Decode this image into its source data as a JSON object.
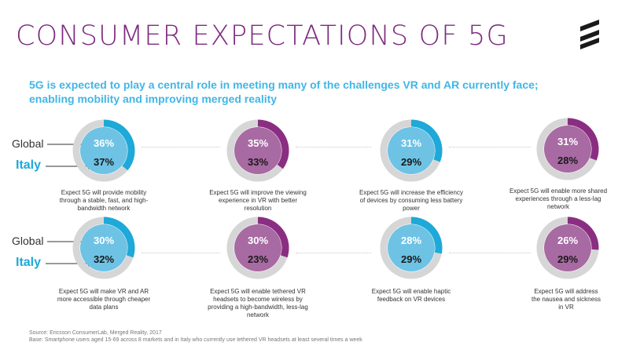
{
  "header": {
    "title": "CONSUMER EXPECTATIONS OF 5G",
    "logo_icon": "ericsson-logo-icon"
  },
  "subtitle": {
    "line1": "5G is expected to play a central role in meeting many of the challenges VR and AR currently face;",
    "line2": "enabling mobility and improving merged reality"
  },
  "legend": {
    "global_label": "Global",
    "italy_label": "Italy"
  },
  "colors": {
    "title": "#7d2a80",
    "subtitle": "#41b6e6",
    "blue_inner": "#6ec3e5",
    "blue_arc": "#1ea9d8",
    "purple_inner": "#a86aa2",
    "purple_arc": "#8a2e82",
    "track": "#d6d6d6"
  },
  "chart_data": {
    "type": "pie",
    "unit": "%",
    "series_names": [
      "Global",
      "Italy"
    ],
    "items": [
      {
        "color": "blue",
        "global": 36,
        "italy": 37,
        "global_label": "36%",
        "italy_label": "37%",
        "caption": [
          "Expect 5G will provide mobility",
          "through a stable, fast, and high-",
          "bandwidth network"
        ]
      },
      {
        "color": "purple",
        "global": 35,
        "italy": 33,
        "global_label": "35%",
        "italy_label": "33%",
        "caption": [
          "Expect 5G will improve the viewing",
          "experience in VR with better",
          "resolution"
        ]
      },
      {
        "color": "blue",
        "global": 31,
        "italy": 29,
        "global_label": "31%",
        "italy_label": "29%",
        "caption": [
          "Expect 5G will increase the efficiency",
          "of devices by consuming less battery",
          "power"
        ]
      },
      {
        "color": "purple",
        "global": 31,
        "italy": 28,
        "global_label": "31%",
        "italy_label": "28%",
        "caption": [
          "Expect 5G will enable more shared",
          "experiences through a less-lag",
          "network"
        ]
      },
      {
        "color": "blue",
        "global": 30,
        "italy": 32,
        "global_label": "30%",
        "italy_label": "32%",
        "caption": [
          "Expect 5G will make VR and AR",
          "more accessible through cheaper",
          "data plans"
        ]
      },
      {
        "color": "purple",
        "global": 30,
        "italy": 23,
        "global_label": "30%",
        "italy_label": "23%",
        "caption": [
          "Expect 5G will enable tethered VR",
          "headsets to become wireless by",
          "providing a high-bandwidth, less-lag",
          "network"
        ]
      },
      {
        "color": "blue",
        "global": 28,
        "italy": 29,
        "global_label": "28%",
        "italy_label": "29%",
        "caption": [
          "Expect 5G will enable haptic",
          "feedback on VR devices"
        ]
      },
      {
        "color": "purple",
        "global": 26,
        "italy": 29,
        "global_label": "26%",
        "italy_label": "29%",
        "caption": [
          "Expect 5G will address",
          "the nausea and sickness",
          "in VR"
        ]
      }
    ]
  },
  "footer": {
    "source": "Source: Ericsson ConsumerLab, Merged Reality, 2017",
    "base": "Base: Smartphone users aged 15-69 across 8 markets and in Italy who currently use tethered VR headsets at least several times a week"
  }
}
